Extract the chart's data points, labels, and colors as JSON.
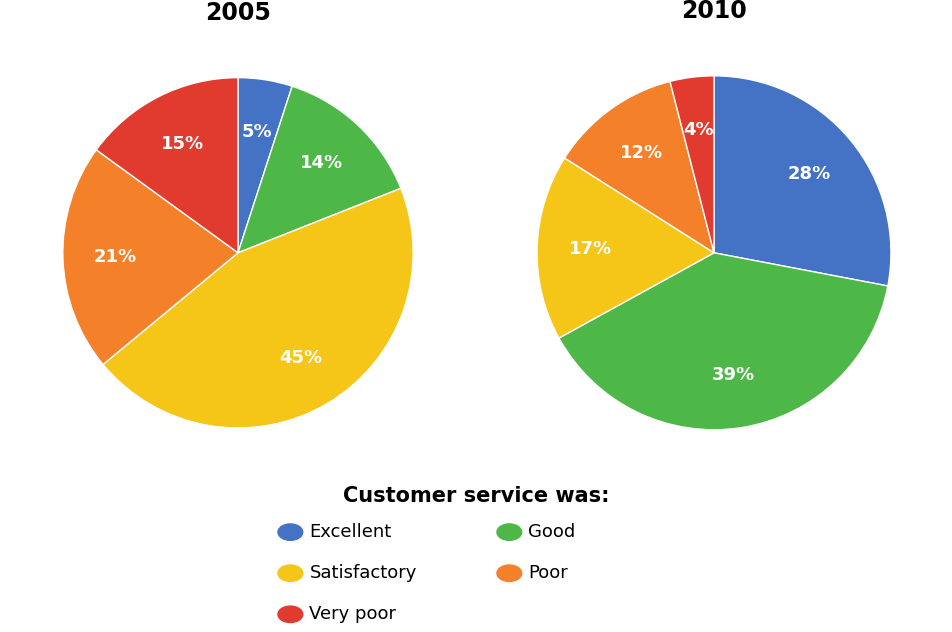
{
  "year_2005": {
    "title": "2005",
    "labels": [
      "Excellent",
      "Good",
      "Satisfactory",
      "Poor",
      "Very poor"
    ],
    "values": [
      5,
      14,
      45,
      21,
      15
    ],
    "colors": [
      "#4472C4",
      "#4DB848",
      "#F5C518",
      "#F4802A",
      "#E03B2E"
    ],
    "startangle": 90
  },
  "year_2010": {
    "title": "2010",
    "labels": [
      "Excellent",
      "Good",
      "Satisfactory",
      "Poor",
      "Very poor"
    ],
    "values": [
      28,
      39,
      17,
      12,
      4
    ],
    "colors": [
      "#4472C4",
      "#4DB848",
      "#F5C518",
      "#F4802A",
      "#E03B2E"
    ],
    "startangle": 90
  },
  "legend_title": "Customer service was:",
  "legend_entries": [
    {
      "label": "Excellent",
      "color": "#4472C4"
    },
    {
      "label": "Good",
      "color": "#4DB848"
    },
    {
      "label": "Satisfactory",
      "color": "#F5C518"
    },
    {
      "label": "Poor",
      "color": "#F4802A"
    },
    {
      "label": "Very poor",
      "color": "#E03B2E"
    }
  ],
  "background_color": "#FFFFFF",
  "text_color": "#FFFFFF",
  "pct_fontsize": 13,
  "title_fontsize": 17,
  "legend_title_fontsize": 15,
  "legend_label_fontsize": 13
}
